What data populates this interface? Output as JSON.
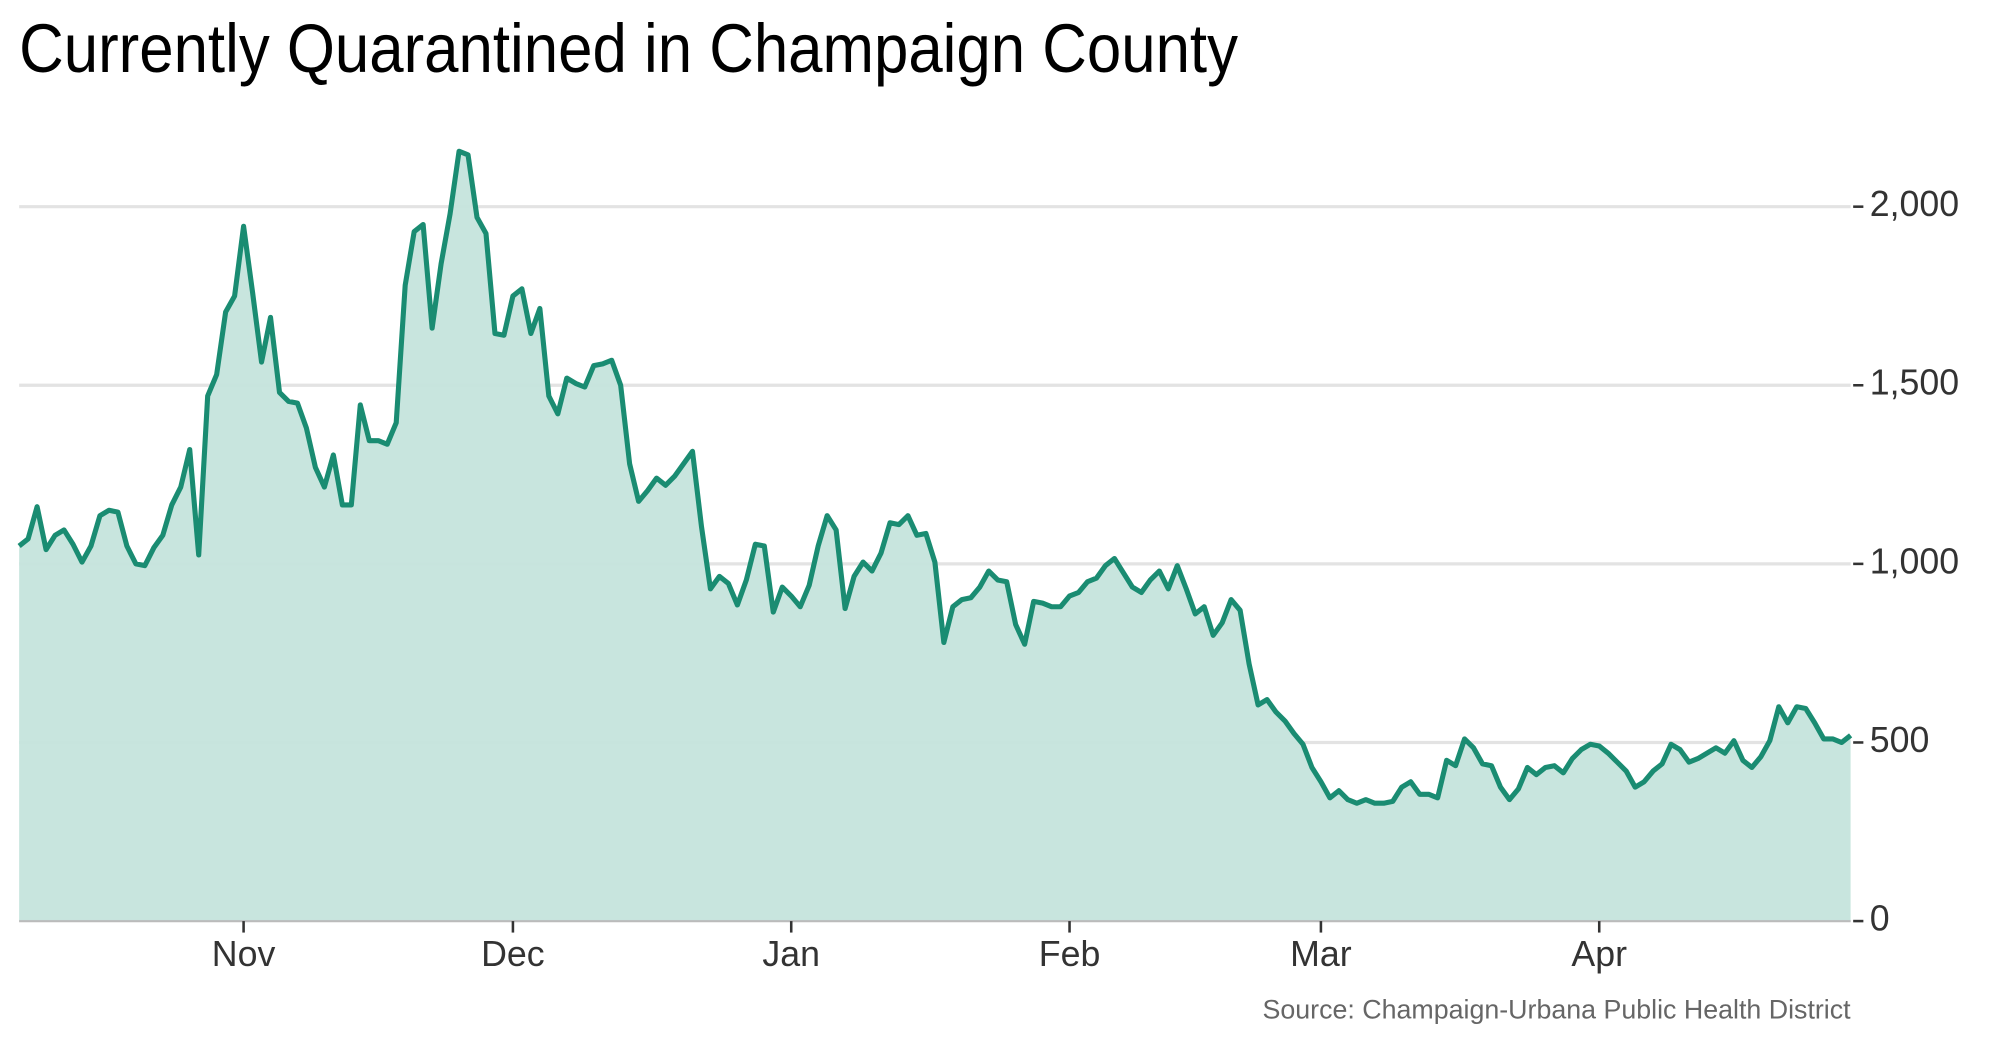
{
  "chart_data": {
    "type": "area",
    "title": "Currently Quarantined in Champaign County",
    "source": "Source: Champaign-Urbana Public Health District",
    "color": "#1a8c72",
    "fill": "#c5e4dc",
    "grid": true,
    "ylim": [
      0,
      2000
    ],
    "yticks": [
      0,
      500,
      {
        "value": 1000,
        "label": "1,000"
      },
      {
        "value": 1500,
        "label": "1,500"
      },
      {
        "value": 2000,
        "label": "2,000"
      }
    ],
    "categories": [
      null,
      null,
      null,
      null,
      null,
      null,
      null,
      null,
      null,
      null,
      null,
      null,
      null,
      null,
      null,
      null,
      null,
      null,
      null,
      null,
      null,
      null,
      null,
      null,
      null,
      "Nov",
      null,
      null,
      null,
      null,
      null,
      null,
      null,
      null,
      null,
      null,
      null,
      null,
      null,
      null,
      null,
      null,
      null,
      null,
      null,
      null,
      null,
      null,
      null,
      null,
      null,
      null,
      null,
      null,
      null,
      "Dec",
      null,
      null,
      null,
      null,
      null,
      null,
      null,
      null,
      null,
      null,
      null,
      null,
      null,
      null,
      null,
      null,
      null,
      null,
      null,
      null,
      null,
      null,
      null,
      null,
      null,
      null,
      null,
      null,
      null,
      null,
      "Jan",
      null,
      null,
      null,
      null,
      null,
      null,
      null,
      null,
      null,
      null,
      null,
      null,
      null,
      null,
      null,
      null,
      null,
      null,
      null,
      null,
      null,
      null,
      null,
      null,
      null,
      null,
      null,
      null,
      null,
      null,
      "Feb",
      null,
      null,
      null,
      null,
      null,
      null,
      null,
      null,
      null,
      null,
      null,
      null,
      null,
      null,
      null,
      null,
      null,
      null,
      null,
      null,
      null,
      null,
      null,
      null,
      null,
      null,
      null,
      "Mar",
      null,
      null,
      null,
      null,
      null,
      null,
      null,
      null,
      null,
      null,
      null,
      null,
      null,
      null,
      null,
      null,
      null,
      null,
      null,
      null,
      null,
      null,
      null,
      null,
      null,
      null,
      null,
      null,
      null,
      null,
      "Apr",
      null,
      null,
      null,
      null,
      null,
      null,
      null,
      null,
      null,
      null,
      null,
      null,
      null,
      null,
      null,
      null,
      null,
      null,
      null,
      null,
      null,
      null,
      null,
      null,
      null,
      null,
      null,
      null
    ],
    "values": [
      1050,
      1070,
      1160,
      1040,
      1080,
      1095,
      1055,
      1005,
      1050,
      1135,
      1150,
      1145,
      1050,
      1000,
      995,
      1045,
      1080,
      1165,
      1215,
      1320,
      1025,
      1470,
      1530,
      1705,
      1750,
      1945,
      1760,
      1565,
      1690,
      1480,
      1455,
      1450,
      1380,
      1270,
      1215,
      1305,
      1165,
      1165,
      1445,
      1345,
      1345,
      1335,
      1395,
      1780,
      1930,
      1950,
      1660,
      1840,
      1980,
      2155,
      2145,
      1970,
      1925,
      1645,
      1640,
      1750,
      1770,
      1645,
      1715,
      1470,
      1420,
      1520,
      1505,
      1495,
      1555,
      1560,
      1570,
      1500,
      1280,
      1175,
      1205,
      1240,
      1220,
      1245,
      1280,
      1315,
      1105,
      930,
      965,
      945,
      885,
      955,
      1055,
      1050,
      865,
      935,
      910,
      880,
      940,
      1050,
      1135,
      1095,
      875,
      965,
      1005,
      980,
      1030,
      1115,
      1110,
      1135,
      1080,
      1085,
      1005,
      780,
      880,
      900,
      905,
      935,
      980,
      955,
      950,
      830,
      775,
      895,
      890,
      880,
      880,
      910,
      920,
      950,
      960,
      995,
      1015,
      975,
      935,
      920,
      955,
      980,
      930,
      995,
      930,
      860,
      880,
      800,
      835,
      900,
      870,
      720,
      605,
      620,
      585,
      560,
      525,
      495,
      430,
      390,
      345,
      365,
      340,
      330,
      340,
      330,
      330,
      335,
      375,
      390,
      355,
      355,
      345,
      450,
      435,
      510,
      485,
      440,
      435,
      375,
      340,
      370,
      430,
      410,
      430,
      435,
      415,
      455,
      480,
      495,
      490,
      470,
      445,
      420,
      375,
      390,
      420,
      440,
      495,
      480,
      445,
      455,
      470,
      485,
      470,
      505,
      450,
      430,
      460,
      505,
      600,
      555,
      600,
      595,
      555,
      510,
      510,
      500,
      520
    ]
  }
}
